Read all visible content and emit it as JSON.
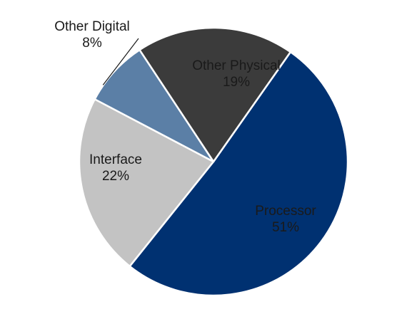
{
  "chart_data": {
    "type": "pie",
    "title": "",
    "slices": [
      {
        "label": "Processor",
        "value_label": "51%",
        "value": 51,
        "color": "#003171",
        "text_color": "#1a1a1a"
      },
      {
        "label": "Interface",
        "value_label": "22%",
        "value": 22,
        "color": "#c3c3c3",
        "text_color": "#1a1a1a"
      },
      {
        "label": "Other Digital",
        "value_label": "8%",
        "value": 8,
        "color": "#5b7fa6",
        "text_color": "#1a1a1a"
      },
      {
        "label": "Other Physical",
        "value_label": "19%",
        "value": 19,
        "color": "#3b3b3b",
        "text_color": "#1a1a1a"
      }
    ],
    "start_angle_deg": 55,
    "direction": "clockwise",
    "edge_color": "#ffffff"
  }
}
